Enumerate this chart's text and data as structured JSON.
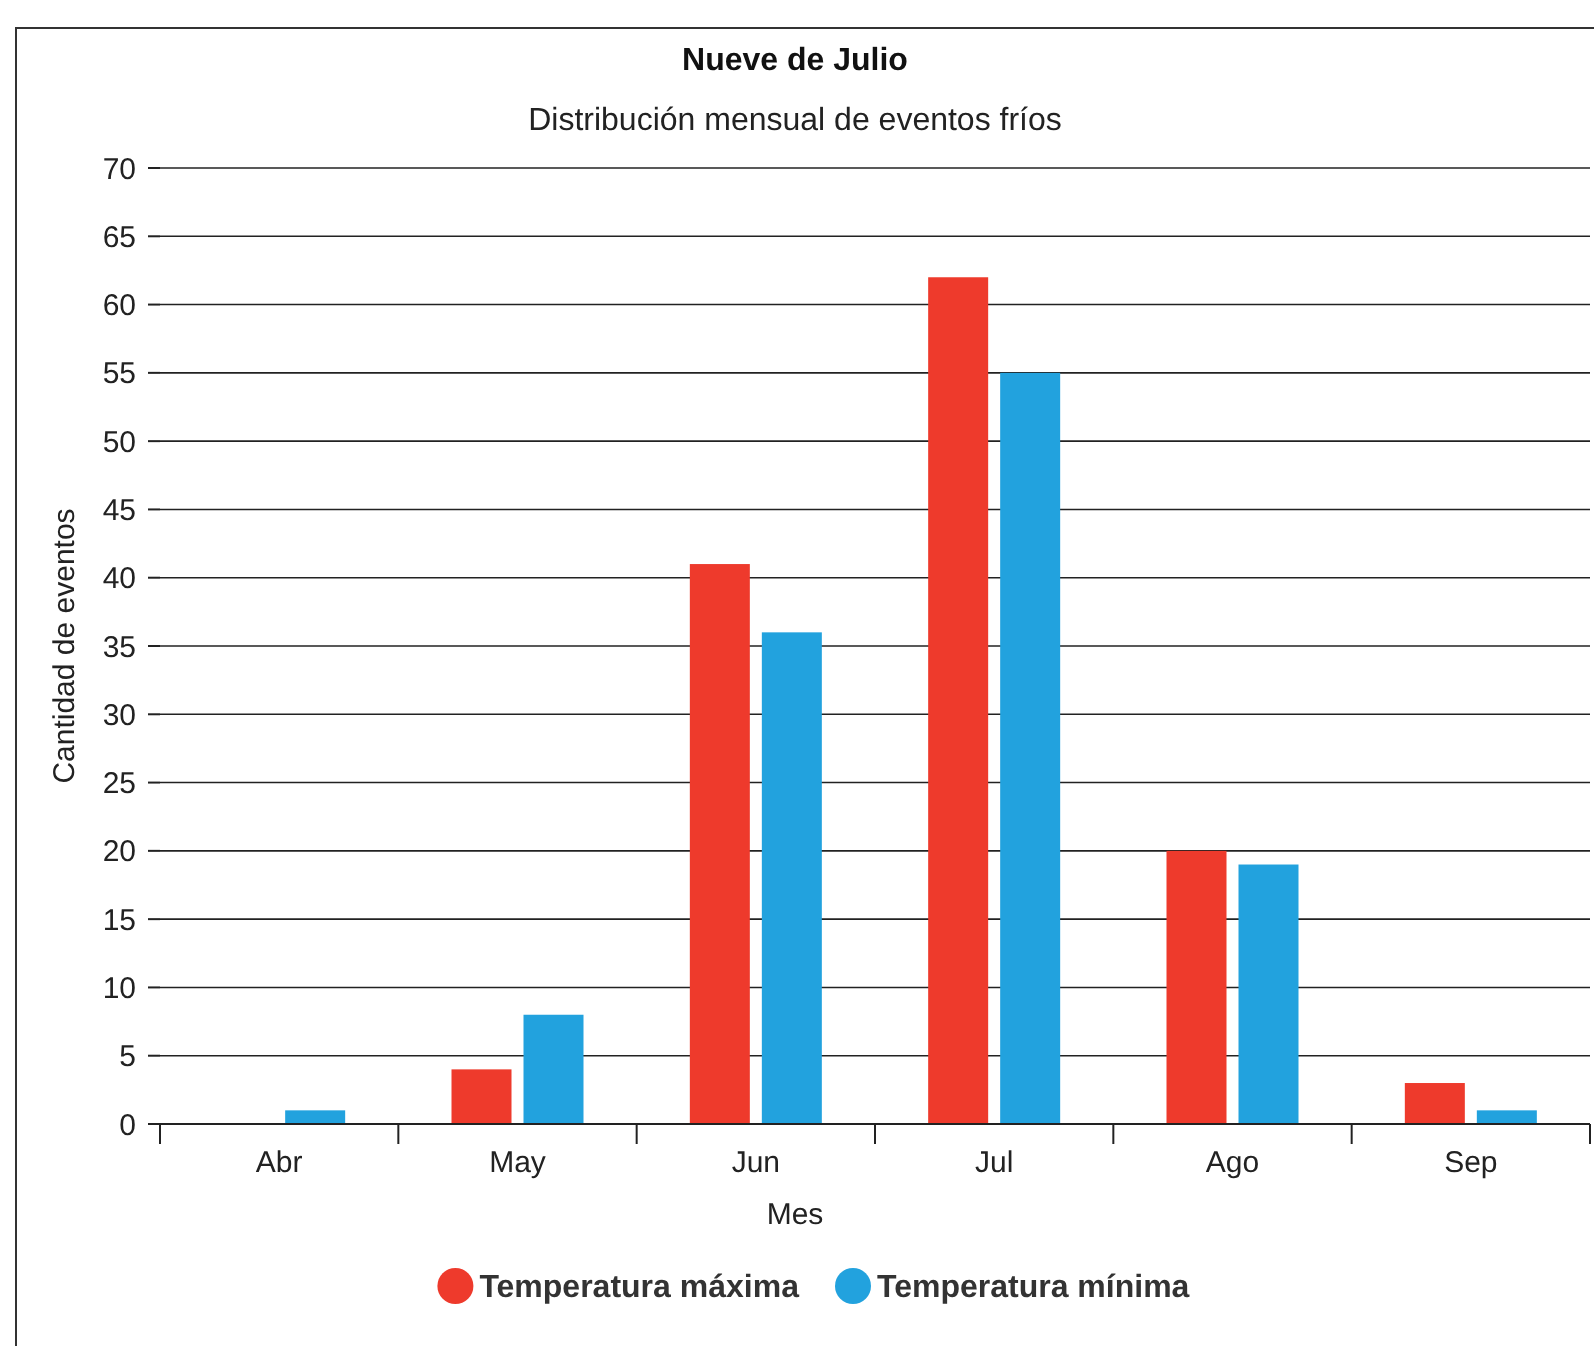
{
  "chart_data": {
    "type": "bar",
    "title": "Nueve de Julio",
    "subtitle": "Distribución mensual de eventos fríos",
    "xlabel": "Mes",
    "ylabel": "Cantidad de eventos",
    "categories": [
      "Abr",
      "May",
      "Jun",
      "Jul",
      "Ago",
      "Sep"
    ],
    "series": [
      {
        "name": "Temperatura máxima",
        "color": "#ee3a2c",
        "values": [
          0,
          4,
          41,
          62,
          20,
          3
        ]
      },
      {
        "name": "Temperatura mínima",
        "color": "#22a2de",
        "values": [
          1,
          8,
          36,
          55,
          19,
          1
        ]
      }
    ],
    "ylim": [
      0,
      70
    ],
    "yticks": [
      0,
      5,
      10,
      15,
      20,
      25,
      30,
      35,
      40,
      45,
      50,
      55,
      60,
      65,
      70
    ],
    "grid": "y",
    "legend": "bottom"
  }
}
